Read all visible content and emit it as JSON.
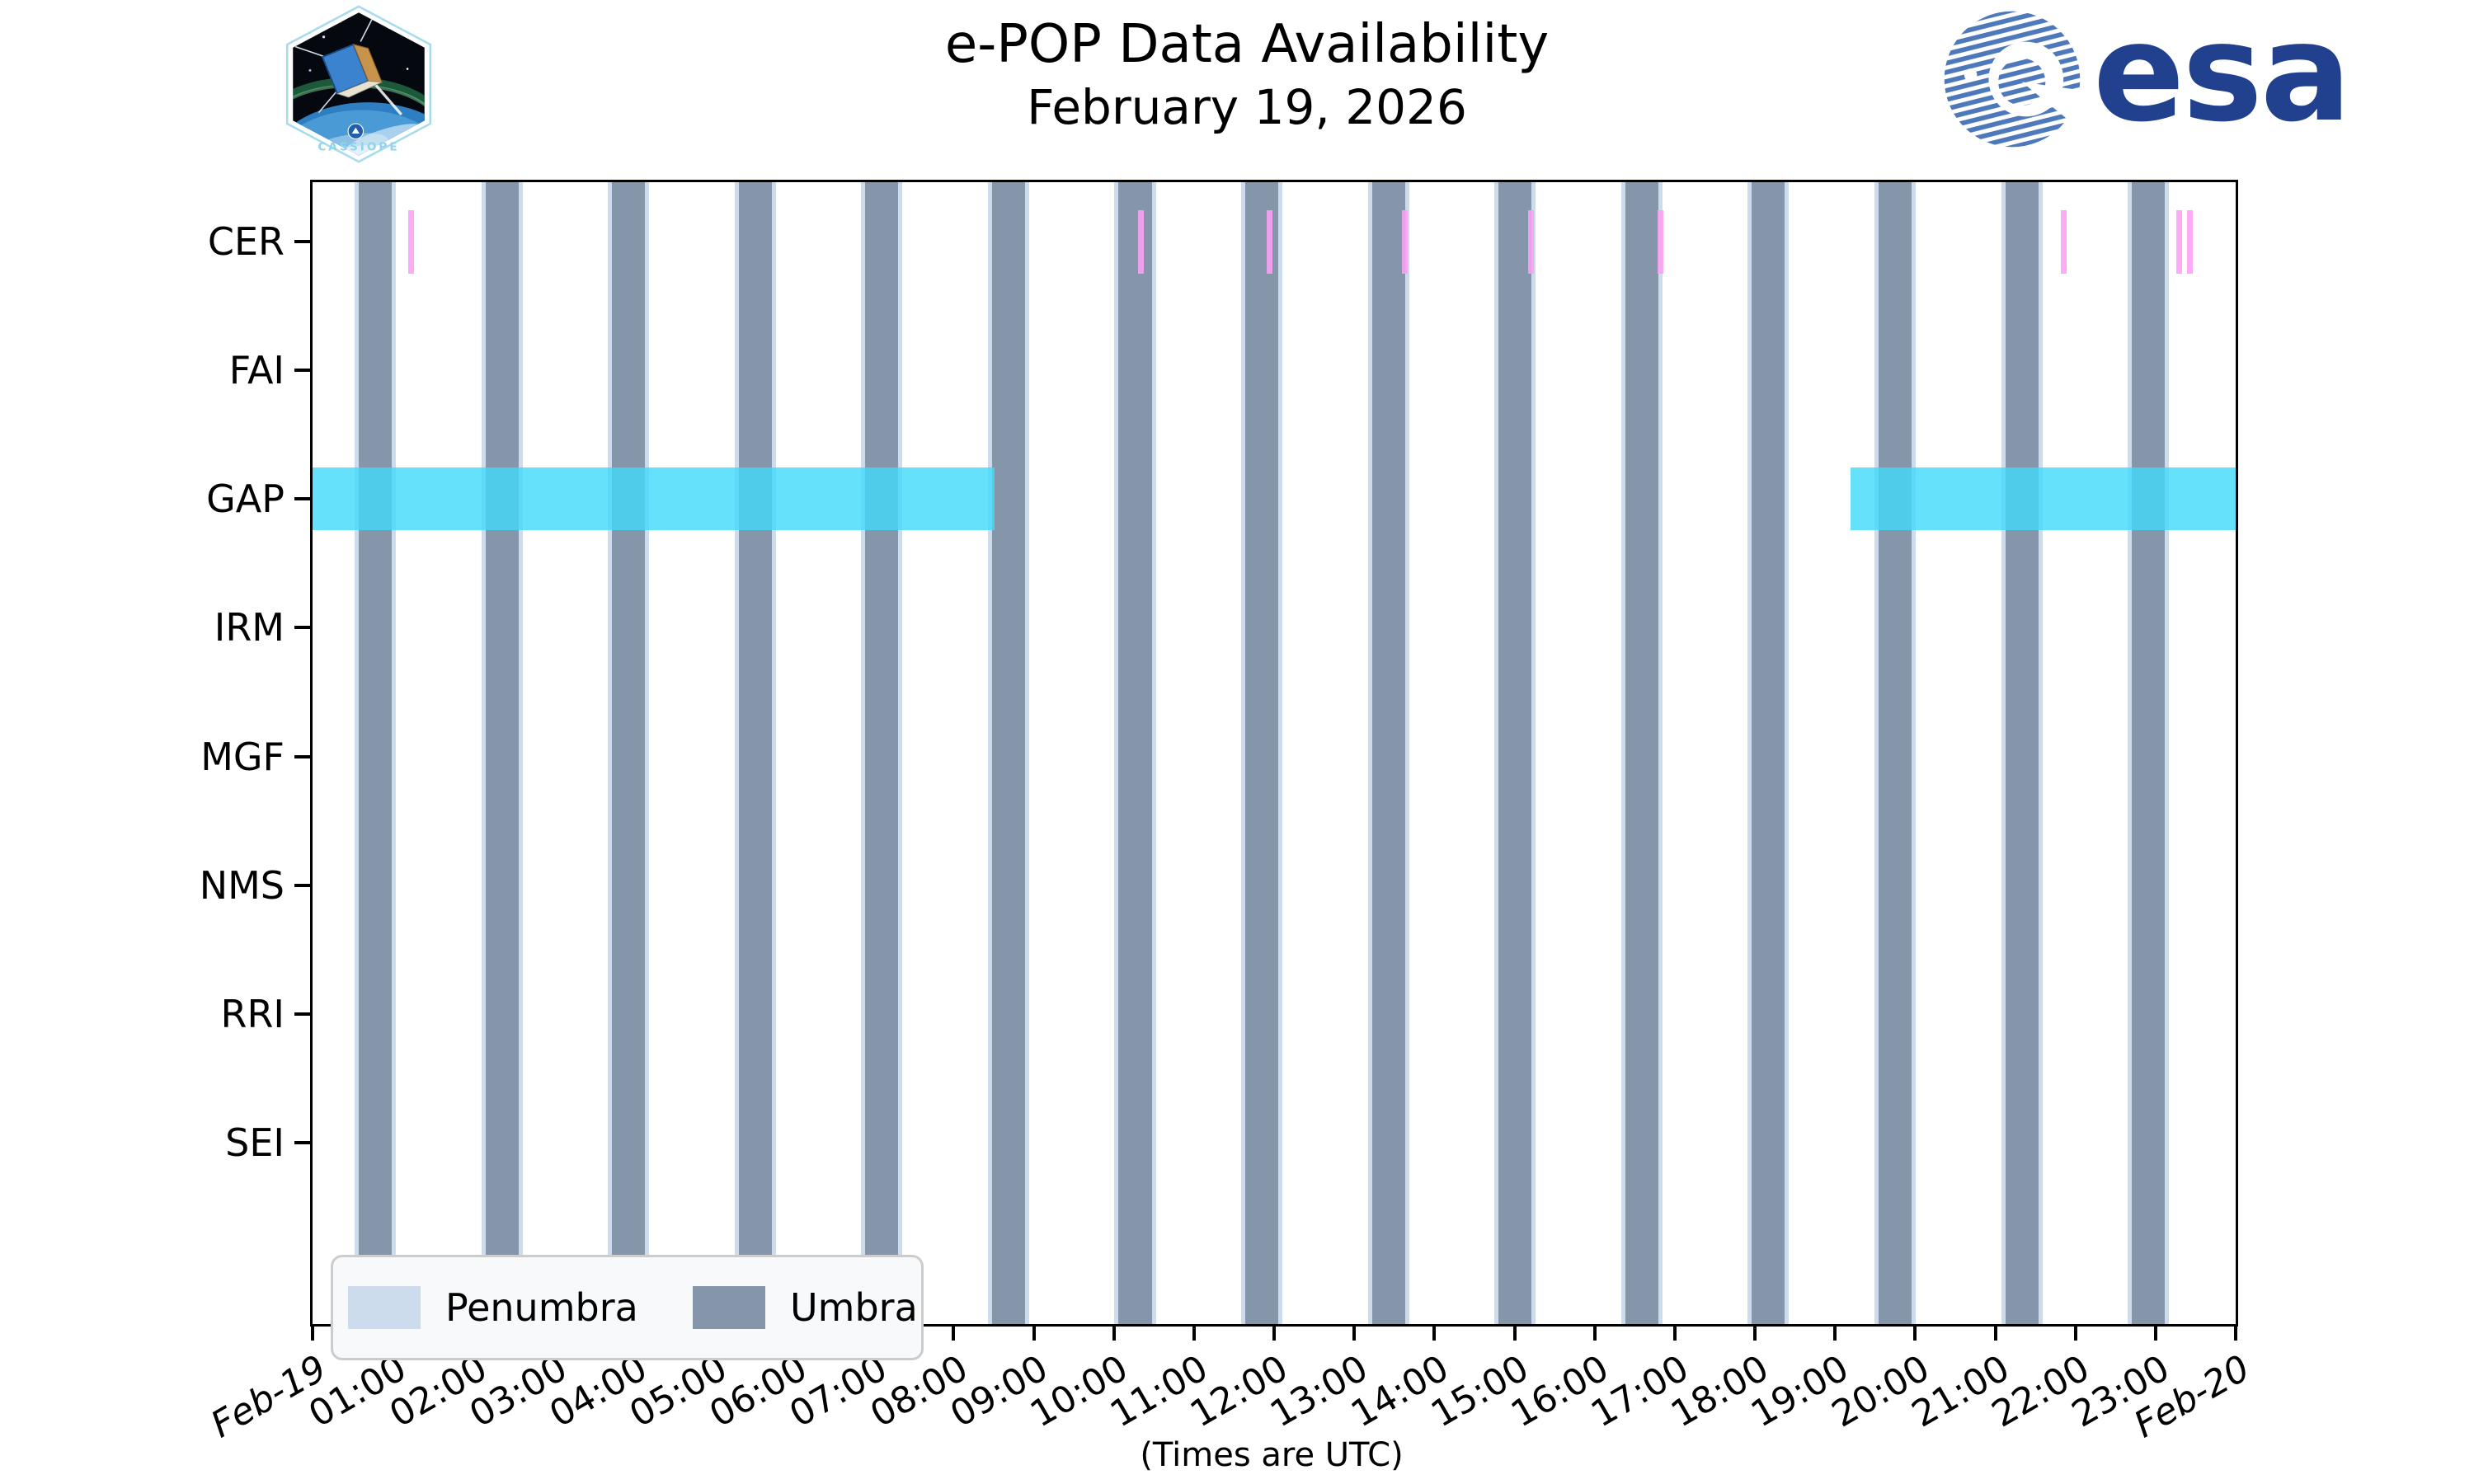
{
  "header": {
    "title_line1": "e-POP Data Availability",
    "title_line2": "February 19, 2026"
  },
  "cassiope_patch": {
    "label": "CASSIOPE"
  },
  "esa_logo": {
    "text": "esa"
  },
  "legend": {
    "items": [
      {
        "label": "Penumbra",
        "color": "#ccdcec"
      },
      {
        "label": "Umbra",
        "color": "#8595aa"
      }
    ]
  },
  "x_axis_note": "(Times are UTC)",
  "chart_data": {
    "type": "timeline",
    "title": "e-POP Data Availability",
    "subtitle": "February 19, 2026",
    "x_axis": {
      "label": "(Times are UTC)",
      "range_hours": [
        0,
        24
      ],
      "tick_interval_hours": 1,
      "tick_labels": [
        "Feb-19",
        "01:00",
        "02:00",
        "03:00",
        "04:00",
        "05:00",
        "06:00",
        "07:00",
        "08:00",
        "09:00",
        "10:00",
        "11:00",
        "12:00",
        "13:00",
        "14:00",
        "15:00",
        "16:00",
        "17:00",
        "18:00",
        "19:00",
        "20:00",
        "21:00",
        "22:00",
        "23:00",
        "Feb-20"
      ]
    },
    "y_axis": {
      "instruments": [
        "CER",
        "FAI",
        "GAP",
        "IRM",
        "MGF",
        "NMS",
        "RRI",
        "SEI"
      ]
    },
    "legend_entries": [
      "Penumbra",
      "Umbra"
    ],
    "umbra_intervals": [
      {
        "start_h": 0.576,
        "end_h": 0.988,
        "start": "00:35",
        "end": "00:59"
      },
      {
        "start_h": 2.157,
        "end_h": 2.568,
        "start": "02:09",
        "end": "02:34"
      },
      {
        "start_h": 3.737,
        "end_h": 4.149,
        "start": "03:44",
        "end": "04:09"
      },
      {
        "start_h": 5.318,
        "end_h": 5.73,
        "start": "05:19",
        "end": "05:44"
      },
      {
        "start_h": 6.899,
        "end_h": 7.31,
        "start": "06:54",
        "end": "07:19"
      },
      {
        "start_h": 8.479,
        "end_h": 8.891,
        "start": "08:29",
        "end": "08:53"
      },
      {
        "start_h": 10.06,
        "end_h": 10.472,
        "start": "10:04",
        "end": "10:28"
      },
      {
        "start_h": 11.641,
        "end_h": 12.052,
        "start": "11:38",
        "end": "12:03"
      },
      {
        "start_h": 13.221,
        "end_h": 13.633,
        "start": "13:13",
        "end": "13:38"
      },
      {
        "start_h": 14.802,
        "end_h": 15.214,
        "start": "14:48",
        "end": "15:13"
      },
      {
        "start_h": 16.383,
        "end_h": 16.794,
        "start": "16:23",
        "end": "16:48"
      },
      {
        "start_h": 17.963,
        "end_h": 18.375,
        "start": "17:58",
        "end": "18:23"
      },
      {
        "start_h": 19.544,
        "end_h": 19.956,
        "start": "19:33",
        "end": "19:57"
      },
      {
        "start_h": 21.125,
        "end_h": 21.536,
        "start": "21:07",
        "end": "21:32"
      },
      {
        "start_h": 22.705,
        "end_h": 23.117,
        "start": "22:42",
        "end": "23:07"
      }
    ],
    "penumbra_pad_hours": 0.052,
    "gap_data_intervals": [
      {
        "instrument": "GAP",
        "start_h": 0.0,
        "end_h": 8.51,
        "start": "00:00",
        "end": "08:31"
      },
      {
        "instrument": "GAP",
        "start_h": 19.19,
        "end_h": 24.0,
        "start": "19:11",
        "end": "24:00"
      }
    ],
    "cer_events": [
      {
        "h": 1.23,
        "t": "01:14"
      },
      {
        "h": 10.34,
        "t": "10:21"
      },
      {
        "h": 11.94,
        "t": "11:57"
      },
      {
        "h": 13.63,
        "t": "13:38"
      },
      {
        "h": 15.21,
        "t": "15:13"
      },
      {
        "h": 16.82,
        "t": "16:49"
      },
      {
        "h": 21.85,
        "t": "21:51"
      },
      {
        "h": 23.3,
        "t": "23:18"
      },
      {
        "h": 23.43,
        "t": "23:26"
      }
    ],
    "colors": {
      "umbra": "#8595aa",
      "penumbra": "#ccdcec",
      "gap_bar": "rgba(64,217,250,0.8)",
      "cer_event": "rgba(250,160,242,0.88)",
      "axis": "#000000"
    }
  }
}
